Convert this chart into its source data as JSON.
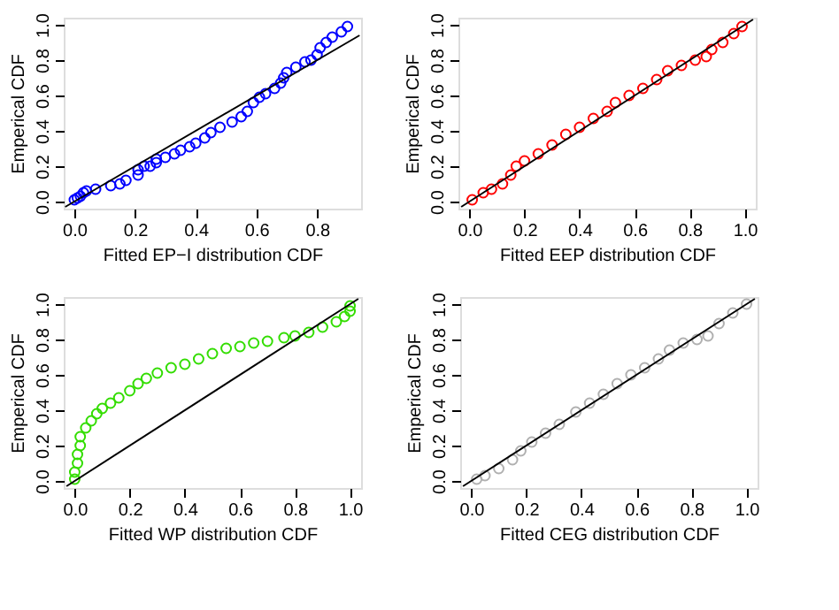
{
  "chart_data": [
    {
      "type": "scatter",
      "xlabel": "Fitted EP−I distribution CDF",
      "ylabel": "Emperical CDF",
      "grid": false,
      "xlim": [
        -0.035,
        0.945
      ],
      "ylim": [
        -0.04,
        1.04
      ],
      "xticks": [
        {
          "value": 0,
          "label": "0.0"
        },
        {
          "value": 0.2,
          "label": "0.2"
        },
        {
          "value": 0.4,
          "label": "0.4"
        },
        {
          "value": 0.6,
          "label": "0.6"
        },
        {
          "value": 0.8,
          "label": "0.8"
        }
      ],
      "yticks": [
        {
          "value": 0,
          "label": "0.0"
        },
        {
          "value": 0.2,
          "label": "0.2"
        },
        {
          "value": 0.4,
          "label": "0.4"
        },
        {
          "value": 0.6,
          "label": "0.6"
        },
        {
          "value": 0.8,
          "label": "0.8"
        },
        {
          "value": 1,
          "label": "1.0"
        }
      ],
      "series": [
        {
          "marker": "circle",
          "color": "#0000ff",
          "x": [
            0,
            0.01,
            0.02,
            0.03,
            0.04,
            0.07,
            0.12,
            0.15,
            0.17,
            0.21,
            0.21,
            0.23,
            0.25,
            0.27,
            0.27,
            0.3,
            0.33,
            0.35,
            0.38,
            0.4,
            0.43,
            0.45,
            0.48,
            0.52,
            0.55,
            0.57,
            0.59,
            0.61,
            0.63,
            0.66,
            0.68,
            0.69,
            0.7,
            0.73,
            0.76,
            0.78,
            0.8,
            0.81,
            0.83,
            0.85,
            0.88,
            0.9
          ],
          "values": [
            0.01,
            0.02,
            0.03,
            0.05,
            0.06,
            0.07,
            0.09,
            0.1,
            0.12,
            0.15,
            0.18,
            0.2,
            0.2,
            0.22,
            0.24,
            0.25,
            0.27,
            0.29,
            0.31,
            0.33,
            0.36,
            0.39,
            0.42,
            0.45,
            0.48,
            0.51,
            0.56,
            0.59,
            0.61,
            0.64,
            0.67,
            0.7,
            0.73,
            0.76,
            0.79,
            0.8,
            0.83,
            0.87,
            0.9,
            0.93,
            0.96,
            0.99
          ]
        },
        {
          "type": "line",
          "marker": "none",
          "color": "#000000",
          "x": [
            -0.03,
            0.94
          ],
          "values": [
            -0.03,
            0.94
          ]
        }
      ]
    },
    {
      "type": "scatter",
      "xlabel": "Fitted EEP distribution CDF",
      "ylabel": "Emperical CDF",
      "grid": false,
      "xlim": [
        -0.04,
        1.04
      ],
      "ylim": [
        -0.04,
        1.04
      ],
      "xticks": [
        {
          "value": 0,
          "label": "0.0"
        },
        {
          "value": 0.2,
          "label": "0.2"
        },
        {
          "value": 0.4,
          "label": "0.4"
        },
        {
          "value": 0.6,
          "label": "0.6"
        },
        {
          "value": 0.8,
          "label": "0.8"
        },
        {
          "value": 1,
          "label": "1.0"
        }
      ],
      "yticks": [
        {
          "value": 0,
          "label": "0.0"
        },
        {
          "value": 0.2,
          "label": "0.2"
        },
        {
          "value": 0.4,
          "label": "0.4"
        },
        {
          "value": 0.6,
          "label": "0.6"
        },
        {
          "value": 0.8,
          "label": "0.8"
        },
        {
          "value": 1,
          "label": "1.0"
        }
      ],
      "series": [
        {
          "marker": "circle",
          "color": "#ff0000",
          "x": [
            0.01,
            0.05,
            0.08,
            0.12,
            0.15,
            0.17,
            0.2,
            0.25,
            0.3,
            0.35,
            0.4,
            0.45,
            0.5,
            0.53,
            0.58,
            0.63,
            0.68,
            0.72,
            0.77,
            0.82,
            0.86,
            0.88,
            0.92,
            0.96,
            0.99
          ],
          "values": [
            0.01,
            0.05,
            0.07,
            0.1,
            0.15,
            0.2,
            0.23,
            0.27,
            0.32,
            0.38,
            0.42,
            0.47,
            0.51,
            0.56,
            0.6,
            0.64,
            0.69,
            0.74,
            0.77,
            0.8,
            0.82,
            0.86,
            0.9,
            0.95,
            0.99
          ]
        },
        {
          "type": "line",
          "marker": "none",
          "color": "#000000",
          "x": [
            -0.03,
            1.03
          ],
          "values": [
            -0.03,
            1.03
          ]
        }
      ]
    },
    {
      "type": "scatter",
      "xlabel": "Fitted WP distribution CDF",
      "ylabel": "Emperical CDF",
      "grid": false,
      "xlim": [
        -0.04,
        1.04
      ],
      "ylim": [
        -0.04,
        1.04
      ],
      "xticks": [
        {
          "value": 0,
          "label": "0.0"
        },
        {
          "value": 0.2,
          "label": "0.2"
        },
        {
          "value": 0.4,
          "label": "0.4"
        },
        {
          "value": 0.6,
          "label": "0.6"
        },
        {
          "value": 0.8,
          "label": "0.8"
        },
        {
          "value": 1,
          "label": "1.0"
        }
      ],
      "yticks": [
        {
          "value": 0,
          "label": "0.0"
        },
        {
          "value": 0.2,
          "label": "0.2"
        },
        {
          "value": 0.4,
          "label": "0.4"
        },
        {
          "value": 0.6,
          "label": "0.6"
        },
        {
          "value": 0.8,
          "label": "0.8"
        },
        {
          "value": 1,
          "label": "1.0"
        }
      ],
      "series": [
        {
          "marker": "circle",
          "color": "#33dd00",
          "x": [
            0,
            0,
            0.01,
            0.01,
            0.02,
            0.02,
            0.04,
            0.06,
            0.08,
            0.1,
            0.13,
            0.16,
            0.2,
            0.23,
            0.26,
            0.3,
            0.35,
            0.4,
            0.45,
            0.5,
            0.55,
            0.6,
            0.65,
            0.7,
            0.76,
            0.8,
            0.85,
            0.9,
            0.95,
            0.98,
            1.0,
            1.0
          ],
          "values": [
            0.01,
            0.05,
            0.1,
            0.15,
            0.2,
            0.25,
            0.3,
            0.34,
            0.38,
            0.41,
            0.44,
            0.47,
            0.51,
            0.55,
            0.58,
            0.61,
            0.64,
            0.66,
            0.69,
            0.72,
            0.75,
            0.76,
            0.78,
            0.79,
            0.81,
            0.82,
            0.84,
            0.87,
            0.9,
            0.93,
            0.96,
            0.99
          ]
        },
        {
          "type": "line",
          "marker": "none",
          "color": "#000000",
          "x": [
            -0.03,
            1.03
          ],
          "values": [
            -0.03,
            1.03
          ]
        }
      ]
    },
    {
      "type": "scatter",
      "xlabel": "Fitted CEG distribution CDF",
      "ylabel": "Emperical CDF",
      "grid": false,
      "xlim": [
        -0.04,
        1.04
      ],
      "ylim": [
        -0.04,
        1.04
      ],
      "xticks": [
        {
          "value": 0,
          "label": "0.0"
        },
        {
          "value": 0.2,
          "label": "0.2"
        },
        {
          "value": 0.4,
          "label": "0.4"
        },
        {
          "value": 0.6,
          "label": "0.6"
        },
        {
          "value": 0.8,
          "label": "0.8"
        },
        {
          "value": 1,
          "label": "1.0"
        }
      ],
      "yticks": [
        {
          "value": 0,
          "label": "0.0"
        },
        {
          "value": 0.2,
          "label": "0.2"
        },
        {
          "value": 0.4,
          "label": "0.4"
        },
        {
          "value": 0.6,
          "label": "0.6"
        },
        {
          "value": 0.8,
          "label": "0.8"
        },
        {
          "value": 1,
          "label": "1.0"
        }
      ],
      "series": [
        {
          "marker": "circle",
          "color": "#b0b0b0",
          "x": [
            0.02,
            0.05,
            0.1,
            0.15,
            0.18,
            0.22,
            0.27,
            0.32,
            0.38,
            0.43,
            0.48,
            0.53,
            0.58,
            0.63,
            0.68,
            0.72,
            0.77,
            0.82,
            0.86,
            0.9,
            0.95,
            1.0
          ],
          "values": [
            0.01,
            0.03,
            0.07,
            0.12,
            0.17,
            0.22,
            0.27,
            0.32,
            0.39,
            0.44,
            0.49,
            0.55,
            0.6,
            0.64,
            0.69,
            0.74,
            0.78,
            0.8,
            0.82,
            0.89,
            0.95,
            1.0
          ]
        },
        {
          "type": "line",
          "marker": "none",
          "color": "#000000",
          "x": [
            -0.03,
            1.03
          ],
          "values": [
            -0.03,
            1.03
          ]
        }
      ]
    }
  ]
}
